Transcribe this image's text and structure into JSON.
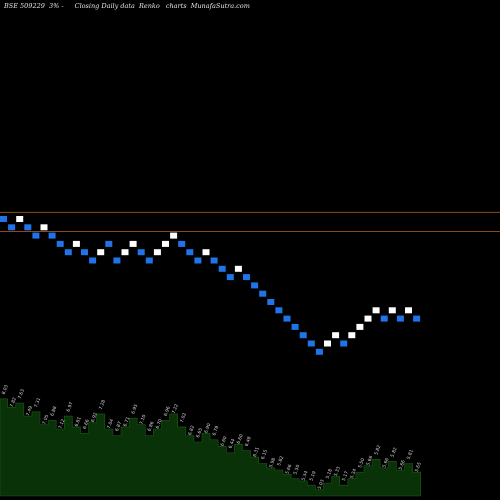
{
  "header": {
    "symbol": "BSE 509229",
    "brick": "3% -",
    "caption": "Closing Daily data",
    "chart_kind": "Renko",
    "suffix": "charts",
    "site": "MunafaSutra.com"
  },
  "chart_data": {
    "type": "renko",
    "brick_percent": 3,
    "bricks": [
      {
        "dir": "down",
        "level": 10
      },
      {
        "dir": "down",
        "level": 9
      },
      {
        "dir": "up",
        "level": 10
      },
      {
        "dir": "down",
        "level": 9
      },
      {
        "dir": "down",
        "level": 8
      },
      {
        "dir": "up",
        "level": 9
      },
      {
        "dir": "down",
        "level": 8
      },
      {
        "dir": "down",
        "level": 7
      },
      {
        "dir": "down",
        "level": 6
      },
      {
        "dir": "up",
        "level": 7
      },
      {
        "dir": "down",
        "level": 6
      },
      {
        "dir": "down",
        "level": 5
      },
      {
        "dir": "up",
        "level": 6
      },
      {
        "dir": "down",
        "level": 7
      },
      {
        "dir": "down",
        "level": 5
      },
      {
        "dir": "up",
        "level": 6
      },
      {
        "dir": "up",
        "level": 7
      },
      {
        "dir": "down",
        "level": 6
      },
      {
        "dir": "down",
        "level": 5
      },
      {
        "dir": "up",
        "level": 6
      },
      {
        "dir": "up",
        "level": 7
      },
      {
        "dir": "up",
        "level": 8
      },
      {
        "dir": "down",
        "level": 7
      },
      {
        "dir": "down",
        "level": 6
      },
      {
        "dir": "down",
        "level": 5
      },
      {
        "dir": "up",
        "level": 6
      },
      {
        "dir": "down",
        "level": 5
      },
      {
        "dir": "down",
        "level": 4
      },
      {
        "dir": "down",
        "level": 3
      },
      {
        "dir": "up",
        "level": 4
      },
      {
        "dir": "down",
        "level": 3
      },
      {
        "dir": "down",
        "level": 2
      },
      {
        "dir": "down",
        "level": 1
      },
      {
        "dir": "down",
        "level": 0
      },
      {
        "dir": "down",
        "level": -1
      },
      {
        "dir": "down",
        "level": -2
      },
      {
        "dir": "down",
        "level": -3
      },
      {
        "dir": "down",
        "level": -4
      },
      {
        "dir": "down",
        "level": -5
      },
      {
        "dir": "down",
        "level": -6
      },
      {
        "dir": "up",
        "level": -5
      },
      {
        "dir": "up",
        "level": -4
      },
      {
        "dir": "down",
        "level": -5
      },
      {
        "dir": "up",
        "level": -4
      },
      {
        "dir": "up",
        "level": -3
      },
      {
        "dir": "up",
        "level": -2
      },
      {
        "dir": "up",
        "level": -1
      },
      {
        "dir": "down",
        "level": -2
      },
      {
        "dir": "up",
        "level": -1
      },
      {
        "dir": "down",
        "level": -2
      },
      {
        "dir": "up",
        "level": -1
      },
      {
        "dir": "down",
        "level": -2
      }
    ],
    "reference_lines": [
      {
        "level": 10.8,
        "color": "#8b4a1a"
      },
      {
        "level": 8.5,
        "color": "#8b4a1a"
      }
    ],
    "volume": {
      "labels": [
        "8.03",
        "7.82",
        "7.63",
        "7.49",
        "7.31",
        "7.05",
        "6.88",
        "7.12",
        "6.97",
        "6.81",
        "6.66",
        "6.92",
        "7.28",
        "7.04",
        "6.87",
        "6.71",
        "6.95",
        "7.10",
        "6.86",
        "6.70",
        "6.96",
        "7.22",
        "7.02",
        "6.82",
        "6.65",
        "6.90",
        "6.78",
        "6.60",
        "6.44",
        "6.60",
        "6.48",
        "6.31",
        "6.15",
        "5.98",
        "5.82",
        "5.66",
        "5.50",
        "5.34",
        "5.19",
        "5.03",
        "5.18",
        "5.33",
        "5.17",
        "5.34",
        "5.50",
        "5.66",
        "5.82",
        "5.66",
        "5.82",
        "5.66",
        "5.81",
        "5.65"
      ],
      "heights": [
        0.9,
        0.82,
        0.86,
        0.74,
        0.78,
        0.66,
        0.7,
        0.62,
        0.74,
        0.64,
        0.58,
        0.68,
        0.76,
        0.62,
        0.56,
        0.64,
        0.72,
        0.66,
        0.56,
        0.62,
        0.7,
        0.76,
        0.64,
        0.56,
        0.5,
        0.58,
        0.52,
        0.46,
        0.4,
        0.48,
        0.42,
        0.36,
        0.3,
        0.26,
        0.24,
        0.2,
        0.16,
        0.14,
        0.1,
        0.06,
        0.12,
        0.18,
        0.1,
        0.16,
        0.22,
        0.28,
        0.34,
        0.26,
        0.32,
        0.24,
        0.3,
        0.22
      ]
    },
    "colors": {
      "up": "#ffffff",
      "down": "#1e74e8",
      "background": "#000000",
      "volume_fill": "#0a3208",
      "volume_stroke": "#000000"
    }
  }
}
